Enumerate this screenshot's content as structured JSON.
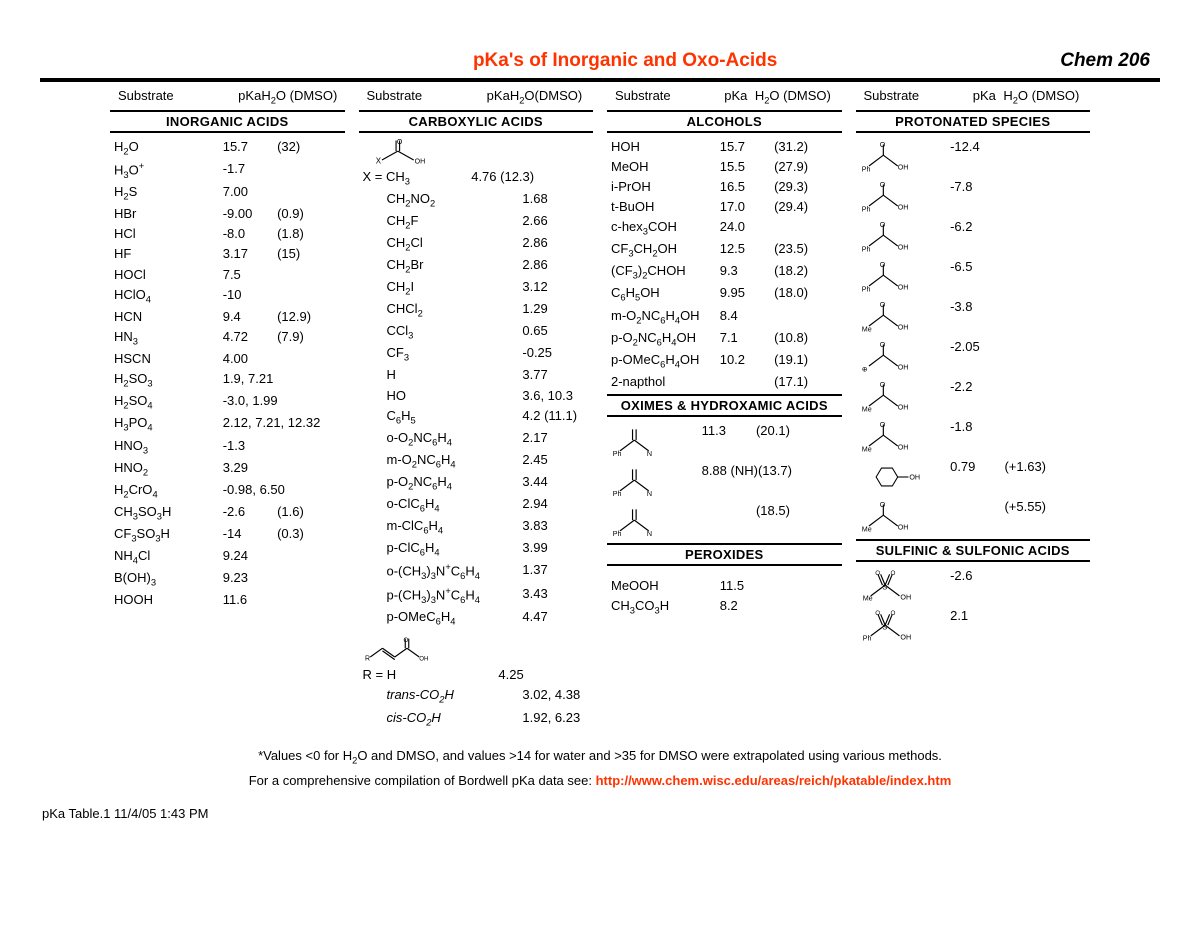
{
  "title_color": "#ff3300",
  "title": "pKa's of Inorganic and Oxo-Acids",
  "course": "Chem 206",
  "head_substrate": "Substrate",
  "head_pka": "pKa",
  "head_vals_a": "H₂O  (DMSO)",
  "head_vals_b": "H₂O(DMSO)",
  "head_vals_c": "H₂O  (DMSO)",
  "head_vals_d": "H₂O  (DMSO)",
  "sections": {
    "inorganic": "INORGANIC ACIDS",
    "carboxylic": "CARBOXYLIC ACIDS",
    "alcohols": "ALCOHOLS",
    "oximes": "OXIMES & HYDROXAMIC ACIDS",
    "peroxides": "PEROXIDES",
    "protonated": "PROTONATED SPECIES",
    "sulf": "SULFINIC & SULFONIC ACIDS"
  },
  "inorg": [
    {
      "s": "H₂O",
      "p": "15.7",
      "d": "(32)"
    },
    {
      "s": "H₃O⁺",
      "p": "-1.7",
      "d": ""
    },
    {
      "s": "H₂S",
      "p": "7.00",
      "d": ""
    },
    {
      "s": "HBr",
      "p": "-9.00",
      "d": "(0.9)"
    },
    {
      "s": "HCl",
      "p": "-8.0",
      "d": "(1.8)"
    },
    {
      "s": "HF",
      "p": "3.17",
      "d": "(15)"
    },
    {
      "s": "HOCl",
      "p": "7.5",
      "d": ""
    },
    {
      "s": "HClO₄",
      "p": "-10",
      "d": ""
    },
    {
      "s": "HCN",
      "p": "9.4",
      "d": "(12.9)"
    },
    {
      "s": "HN₃",
      "p": "4.72",
      "d": "(7.9)"
    },
    {
      "s": "HSCN",
      "p": "4.00",
      "d": ""
    },
    {
      "s": "H₂SO₃",
      "p": "1.9, 7.21",
      "d": ""
    },
    {
      "s": "H₂SO₄",
      "p": "-3.0, 1.99",
      "d": ""
    },
    {
      "s": "H₃PO₄",
      "p": "2.12, 7.21, 12.32",
      "d": ""
    },
    {
      "s": "HNO₃",
      "p": "-1.3",
      "d": ""
    },
    {
      "s": "HNO₂",
      "p": "3.29",
      "d": ""
    },
    {
      "s": "H₂CrO₄",
      "p": "-0.98, 6.50",
      "d": ""
    },
    {
      "s": "CH₃SO₃H",
      "p": "-2.6",
      "d": "(1.6)"
    },
    {
      "s": "CF₃SO₃H",
      "p": "-14",
      "d": "(0.3)"
    },
    {
      "s": "NH₄Cl",
      "p": "9.24",
      "d": ""
    },
    {
      "s": "B(OH)₃",
      "p": "9.23",
      "d": ""
    },
    {
      "s": "HOOH",
      "p": "11.6",
      "d": ""
    }
  ],
  "carbox_header": "X = CH₃",
  "carbox_header_pka": "4.76 (12.3)",
  "carbox": [
    {
      "s": "CH₂NO₂",
      "p": "1.68"
    },
    {
      "s": "CH₂F",
      "p": "2.66"
    },
    {
      "s": "CH₂Cl",
      "p": "2.86"
    },
    {
      "s": "CH₂Br",
      "p": "2.86"
    },
    {
      "s": "CH₂I",
      "p": "3.12"
    },
    {
      "s": "CHCl₂",
      "p": "1.29"
    },
    {
      "s": "CCl₃",
      "p": "0.65"
    },
    {
      "s": "CF₃",
      "p": "-0.25"
    },
    {
      "s": "H",
      "p": "3.77"
    },
    {
      "s": "HO",
      "p": "3.6, 10.3"
    },
    {
      "s": "C₆H₅",
      "p": "4.2  (11.1)"
    },
    {
      "s": "o-O₂NC₆H₄",
      "p": "2.17"
    },
    {
      "s": "m-O₂NC₆H₄",
      "p": "2.45"
    },
    {
      "s": "p-O₂NC₆H₄",
      "p": "3.44"
    },
    {
      "s": "o-ClC₆H₄",
      "p": "2.94"
    },
    {
      "s": "m-ClC₆H₄",
      "p": "3.83"
    },
    {
      "s": "p-ClC₆H₄",
      "p": "3.99"
    },
    {
      "s": "o-(CH₃)₃N⁺C₆H₄",
      "p": "1.37"
    },
    {
      "s": "p-(CH₃)₃N⁺C₆H₄",
      "p": "3.43"
    },
    {
      "s": "p-OMeC₆H₄",
      "p": "4.47"
    }
  ],
  "carbox2_header": "R = H",
  "carbox2": [
    {
      "s": "R = H",
      "p": "4.25"
    },
    {
      "s": "trans-CO₂H",
      "p": "3.02, 4.38"
    },
    {
      "s": "cis-CO₂H",
      "p": "1.92, 6.23"
    }
  ],
  "alcohols": [
    {
      "s": "HOH",
      "p": "15.7",
      "d": "(31.2)"
    },
    {
      "s": "MeOH",
      "p": "15.5",
      "d": "(27.9)"
    },
    {
      "s": "i-PrOH",
      "p": "16.5",
      "d": "(29.3)"
    },
    {
      "s": "t-BuOH",
      "p": "17.0",
      "d": "(29.4)"
    },
    {
      "s": "c-hex₃COH",
      "p": "24.0",
      "d": ""
    },
    {
      "s": "CF₃CH₂OH",
      "p": "12.5",
      "d": "(23.5)"
    },
    {
      "s": "(CF₃)₂CHOH",
      "p": "9.3",
      "d": "(18.2)"
    },
    {
      "s": "C₆H₅OH",
      "p": "9.95",
      "d": "(18.0)"
    },
    {
      "s": "m-O₂NC₆H₄OH",
      "p": "8.4",
      "d": ""
    },
    {
      "s": "p-O₂NC₆H₄OH",
      "p": "7.1",
      "d": "(10.8)"
    },
    {
      "s": "p-OMeC₆H₄OH",
      "p": "10.2",
      "d": "(19.1)"
    },
    {
      "s": "2-napthol",
      "p": "",
      "d": "(17.1)"
    }
  ],
  "oximes": [
    {
      "p": "11.3",
      "d": "(20.1)"
    },
    {
      "p": "8.88 (NH)",
      "d": "(13.7)"
    },
    {
      "p": "",
      "d": "(18.5)"
    }
  ],
  "perox": [
    {
      "s": "MeOOH",
      "p": "11.5",
      "d": ""
    },
    {
      "s": "CH₃CO₃H",
      "p": "8.2",
      "d": ""
    }
  ],
  "prot": [
    {
      "p": "-12.4",
      "d": ""
    },
    {
      "p": "-7.8",
      "d": ""
    },
    {
      "p": "-6.2",
      "d": ""
    },
    {
      "p": "-6.5",
      "d": ""
    },
    {
      "p": "-3.8",
      "d": ""
    },
    {
      "p": "-2.05",
      "d": ""
    },
    {
      "p": "-2.2",
      "d": ""
    },
    {
      "p": "-1.8",
      "d": ""
    },
    {
      "p": "0.79",
      "d": "(+1.63)"
    },
    {
      "p": "",
      "d": "(+5.55)"
    }
  ],
  "sulf": [
    {
      "p": "-2.6",
      "d": ""
    },
    {
      "p": "2.1",
      "d": ""
    }
  ],
  "footnote1": "*Values <0 for H₂O and DMSO, and values >14 for water and >35 for DMSO were extrapolated using various methods.",
  "footnote2_pre": "For a comprehensive compilation of Bordwell pKa data see: ",
  "footnote2_link": "http://www.chem.wisc.edu/areas/reich/pkatable/index.htm",
  "stamp": "pKa Table.1  11/4/05 1:43 PM"
}
